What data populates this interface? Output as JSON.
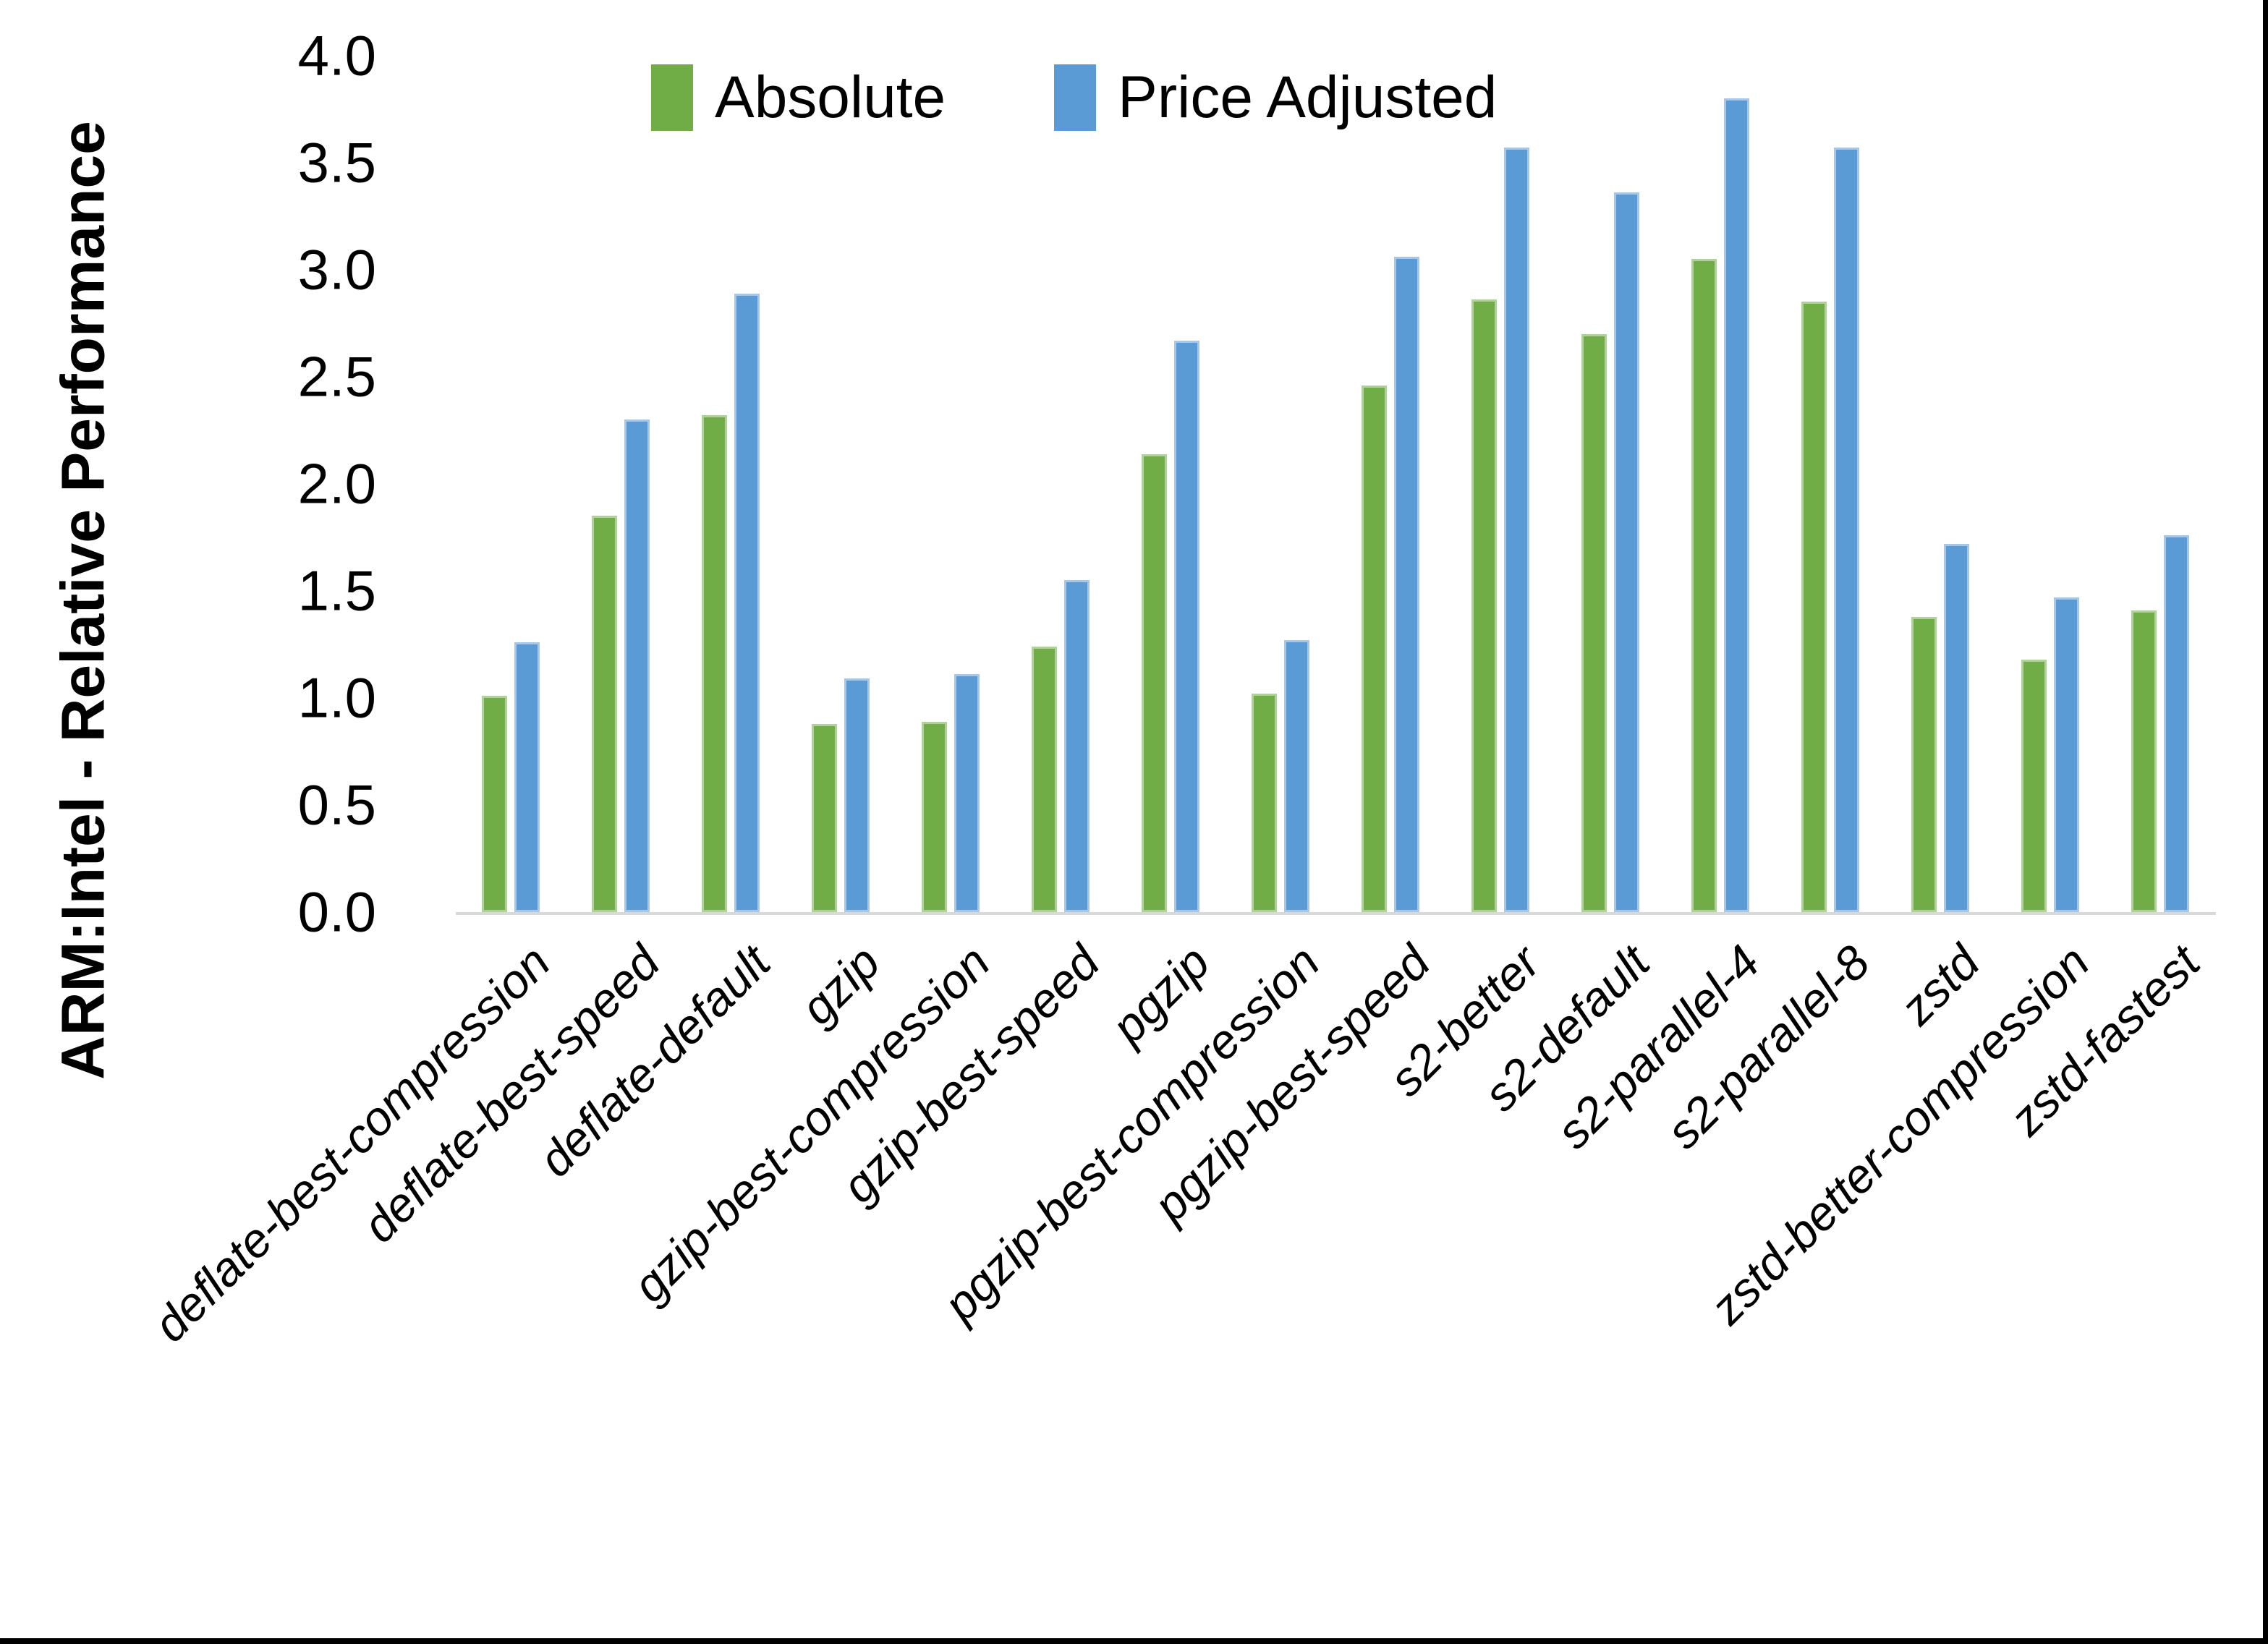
{
  "figure": {
    "background_color": "#ffffff",
    "axis_line_color": "#d9d9d9",
    "text_color": "#000000"
  },
  "legend": [
    {
      "label": "Absolute",
      "color": "#70ad47"
    },
    {
      "label": "Price Adjusted",
      "color": "#5b9bd5"
    }
  ],
  "chart_data": {
    "type": "bar",
    "title": "",
    "xlabel": "",
    "ylabel": "ARM:Intel - Relative Performance",
    "ylim": [
      0,
      4
    ],
    "ytick_step": 0.5,
    "ytick_labels": [
      "0.0",
      "0.5",
      "1.0",
      "1.5",
      "2.0",
      "2.5",
      "3.0",
      "3.5",
      "4.0"
    ],
    "grid": false,
    "legend_position": "top-center",
    "categories": [
      "deflate-best-compression",
      "deflate-best-speed",
      "deflate-default",
      "gzip",
      "gzip-best-compression",
      "gzip-best-speed",
      "pgzip",
      "pgzip-best-compression",
      "pgzip-best-speed",
      "s2-better",
      "s2-default",
      "s2-parallel-4",
      "s2-parallel-8",
      "zstd",
      "zstd-better-compression",
      "zstd-fastest"
    ],
    "series": [
      {
        "name": "Absolute",
        "color": "#70ad47",
        "values": [
          1.01,
          1.85,
          2.32,
          0.88,
          0.89,
          1.24,
          2.14,
          1.02,
          2.46,
          2.86,
          2.7,
          3.05,
          2.85,
          1.38,
          1.18,
          1.41
        ]
      },
      {
        "name": "Price Adjusted",
        "color": "#5b9bd5",
        "values": [
          1.26,
          2.3,
          2.89,
          1.09,
          1.11,
          1.55,
          2.67,
          1.27,
          3.06,
          3.57,
          3.36,
          3.8,
          3.57,
          1.72,
          1.47,
          1.76
        ]
      }
    ]
  }
}
